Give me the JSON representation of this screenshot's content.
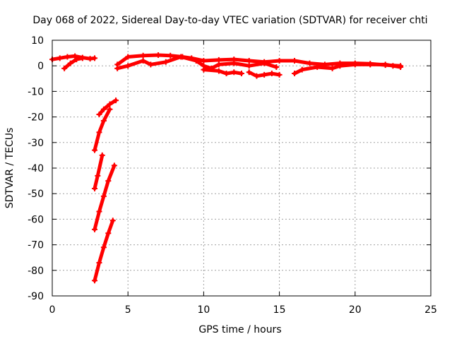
{
  "chart_data": {
    "type": "scatter",
    "title": "Day 068 of 2022, Sidereal Day-to-day VTEC variation (SDTVAR) for receiver chti",
    "xlabel": "GPS time / hours",
    "ylabel": "SDTVAR / TECUs",
    "xlim": [
      0,
      25
    ],
    "ylim": [
      -90,
      10
    ],
    "xticks": [
      0,
      5,
      10,
      15,
      20,
      25
    ],
    "yticks": [
      10,
      0,
      -10,
      -20,
      -30,
      -40,
      -50,
      -60,
      -70,
      -80,
      -90
    ],
    "grid": true,
    "marker_color": "#ff0000",
    "series": [
      {
        "segments": [
          [
            [
              0.0,
              2.5
            ],
            [
              0.5,
              3.0
            ],
            [
              1.0,
              3.5
            ],
            [
              1.5,
              3.8
            ],
            [
              2.0,
              3.2
            ],
            [
              2.5,
              2.8
            ],
            [
              2.8,
              3.0
            ]
          ],
          [
            [
              0.8,
              -1.0
            ],
            [
              1.2,
              1.0
            ],
            [
              1.6,
              2.5
            ],
            [
              2.0,
              3.0
            ]
          ],
          [
            [
              2.8,
              -84.0
            ],
            [
              3.1,
              -77.0
            ],
            [
              3.4,
              -71.0
            ],
            [
              3.7,
              -65.5
            ],
            [
              4.0,
              -60.5
            ]
          ],
          [
            [
              2.8,
              -64.0
            ],
            [
              3.1,
              -57.0
            ],
            [
              3.4,
              -51.0
            ],
            [
              3.7,
              -45.0
            ],
            [
              4.1,
              -39.0
            ]
          ],
          [
            [
              2.8,
              -48.0
            ],
            [
              3.0,
              -43.0
            ],
            [
              3.3,
              -35.0
            ]
          ],
          [
            [
              2.8,
              -33.0
            ],
            [
              3.1,
              -26.0
            ],
            [
              3.4,
              -21.5
            ],
            [
              3.8,
              -17.0
            ]
          ],
          [
            [
              3.1,
              -19.0
            ],
            [
              3.4,
              -17.0
            ],
            [
              3.8,
              -15.0
            ],
            [
              4.2,
              -13.5
            ]
          ],
          [
            [
              4.3,
              0.5
            ],
            [
              5.0,
              3.5
            ],
            [
              6.0,
              4.0
            ],
            [
              7.0,
              4.2
            ],
            [
              7.8,
              4.0
            ],
            [
              8.6,
              3.5
            ],
            [
              9.2,
              3.0
            ],
            [
              10.0,
              2.0
            ],
            [
              11.0,
              2.3
            ],
            [
              12.0,
              2.5
            ],
            [
              13.0,
              2.0
            ],
            [
              14.0,
              1.5
            ],
            [
              15.0,
              2.0
            ],
            [
              16.0,
              2.0
            ],
            [
              17.0,
              1.0
            ],
            [
              18.0,
              0.5
            ],
            [
              19.0,
              1.0
            ],
            [
              20.0,
              1.0
            ],
            [
              21.0,
              0.8
            ],
            [
              22.0,
              0.3
            ],
            [
              23.0,
              0.0
            ]
          ],
          [
            [
              4.3,
              -1.0
            ],
            [
              5.0,
              0.0
            ],
            [
              6.0,
              2.0
            ],
            [
              6.5,
              0.5
            ],
            [
              7.5,
              1.5
            ],
            [
              8.5,
              3.5
            ],
            [
              9.5,
              2.0
            ],
            [
              10.0,
              0.0
            ],
            [
              10.5,
              -1.0
            ],
            [
              11.0,
              0.5
            ],
            [
              12.0,
              1.0
            ],
            [
              13.0,
              0.0
            ],
            [
              14.0,
              1.0
            ],
            [
              14.8,
              -0.5
            ]
          ],
          [
            [
              10.0,
              -1.5
            ],
            [
              11.0,
              -2.0
            ],
            [
              11.5,
              -3.0
            ],
            [
              12.0,
              -2.5
            ],
            [
              12.5,
              -3.0
            ]
          ],
          [
            [
              13.0,
              -2.5
            ],
            [
              13.5,
              -4.0
            ],
            [
              14.0,
              -3.5
            ],
            [
              14.5,
              -3.0
            ],
            [
              15.0,
              -3.5
            ]
          ],
          [
            [
              16.0,
              -3.0
            ],
            [
              16.5,
              -1.5
            ],
            [
              17.5,
              -0.5
            ],
            [
              18.5,
              -1.0
            ],
            [
              19.0,
              0.0
            ],
            [
              20.0,
              0.5
            ],
            [
              21.0,
              0.5
            ],
            [
              22.0,
              0.5
            ],
            [
              22.5,
              0.0
            ],
            [
              23.0,
              -0.5
            ]
          ]
        ]
      }
    ]
  }
}
